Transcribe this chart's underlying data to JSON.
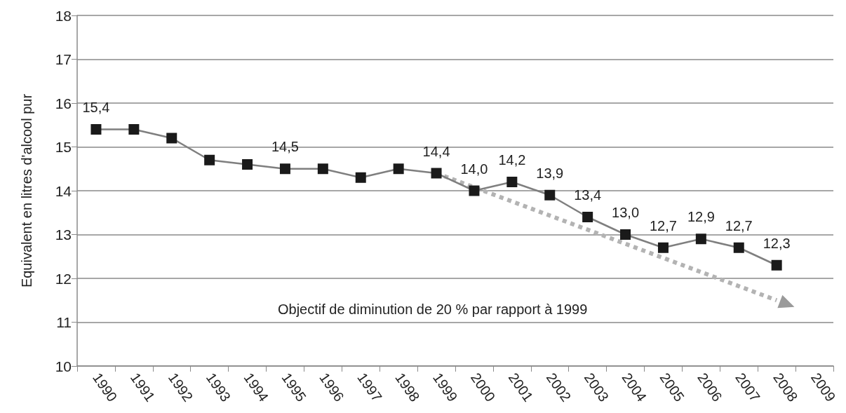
{
  "chart_data": {
    "type": "line",
    "ylabel": "Equivalent en litres d'alcool pur",
    "categories": [
      "1990",
      "1991",
      "1992",
      "1993",
      "1994",
      "1995",
      "1996",
      "1997",
      "1998",
      "1999",
      "2000",
      "2001",
      "2002",
      "2003",
      "2004",
      "2005",
      "2006",
      "2007",
      "2008",
      "2009"
    ],
    "series": [
      {
        "color": "#7f7f7f",
        "marker": "square",
        "line_style": "solid",
        "values": [
          15.4,
          15.4,
          15.2,
          14.7,
          14.6,
          14.5,
          14.5,
          14.3,
          14.5,
          14.4,
          14.0,
          14.2,
          13.9,
          13.4,
          13.0,
          12.7,
          12.9,
          12.7,
          12.3,
          null
        ],
        "value_labels": [
          "15,4",
          null,
          null,
          null,
          null,
          "14,5",
          null,
          null,
          null,
          "14,4",
          "14,0",
          "14,2",
          "13,9",
          "13,4",
          "13,0",
          "12,7",
          "12,9",
          "12,7",
          "12,3",
          null
        ]
      },
      {
        "color": "#b3b3b3",
        "line_style": "dotted",
        "values": [
          null,
          null,
          null,
          null,
          null,
          null,
          null,
          null,
          null,
          14.4,
          null,
          null,
          null,
          null,
          null,
          null,
          null,
          null,
          11.5,
          null
        ]
      }
    ],
    "annotations": [
      "Objectif de diminution de 20 % par rapport à 1999"
    ],
    "ylim": [
      10,
      18
    ],
    "yticks": [
      10,
      11,
      12,
      13,
      14,
      15,
      16,
      17,
      18
    ],
    "grid": "y"
  }
}
